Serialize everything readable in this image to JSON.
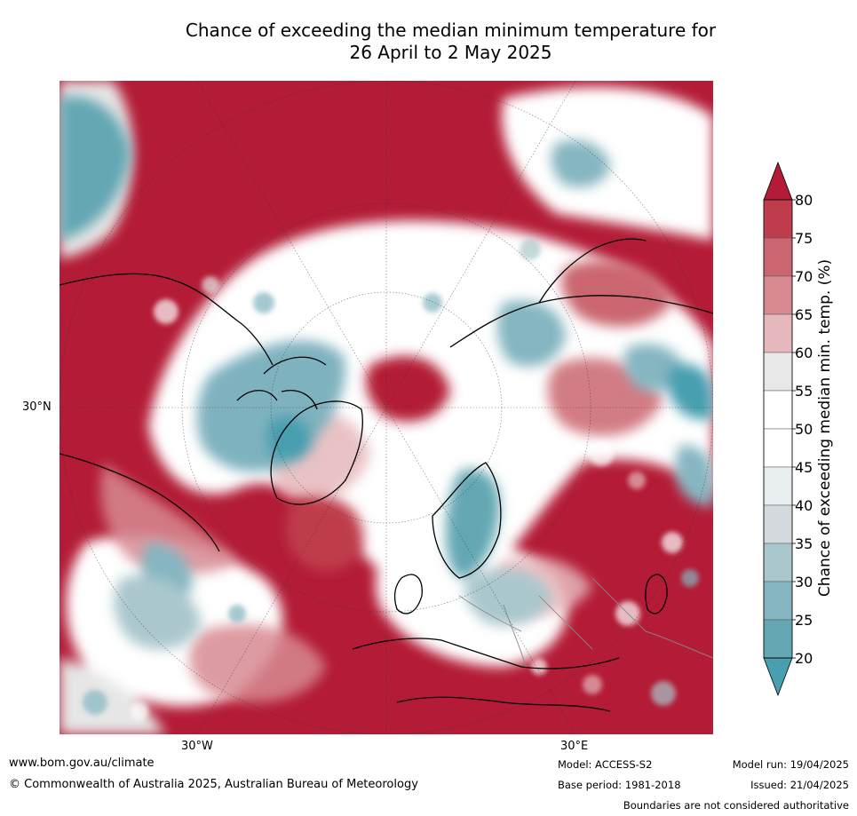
{
  "title_line1": "Chance of exceeding the median minimum temperature for",
  "title_line2": "26 April to 2 May 2025",
  "map": {
    "lat_label": "30°N",
    "lon_labels": [
      "30°W",
      "30°E"
    ],
    "colors": {
      "red_high": "#b31b36",
      "red_mid": "#c9616e",
      "pink": "#e3b1b7",
      "grey": "#e6e6e6",
      "white": "#ffffff",
      "blue_light": "#b4ced4",
      "blue_mid": "#7fb2bf",
      "blue_deep": "#479fb0",
      "land_outline": "#000000",
      "border": "#888888"
    }
  },
  "colorbar": {
    "title": "Chance of exceeding median min. temp. (%)",
    "ticks": [
      "80",
      "75",
      "70",
      "65",
      "60",
      "55",
      "50",
      "45",
      "40",
      "35",
      "30",
      "25",
      "20"
    ],
    "bins": [
      {
        "range": "> 80",
        "color": "#b31b36"
      },
      {
        "range": "75-80",
        "color": "#bf3c4c"
      },
      {
        "range": "70-75",
        "color": "#cb6670"
      },
      {
        "range": "65-70",
        "color": "#d78a92"
      },
      {
        "range": "60-65",
        "color": "#e6b8bc"
      },
      {
        "range": "55-60",
        "color": "#e8e8e8"
      },
      {
        "range": "50-55",
        "color": "#ffffff"
      },
      {
        "range": "45-50",
        "color": "#ffffff"
      },
      {
        "range": "40-45",
        "color": "#e9eef1"
      },
      {
        "range": "35-40",
        "color": "#d3d9dc"
      },
      {
        "range": "30-35",
        "color": "#aac7cd"
      },
      {
        "range": "25-30",
        "color": "#85b6c1"
      },
      {
        "range": "20-25",
        "color": "#64a7b3"
      },
      {
        "range": "< 20",
        "color": "#479fb0"
      }
    ]
  },
  "footer": {
    "url": "www.bom.gov.au/climate",
    "copyright": "© Commonwealth of Australia 2025, Australian Bureau of Meteorology",
    "model": "Model: ACCESS-S2",
    "base_period": "Base period: 1981-2018",
    "model_run": "Model run: 19/04/2025",
    "issued": "Issued: 21/04/2025",
    "disclaimer": "Boundaries are not considered authoritative"
  }
}
